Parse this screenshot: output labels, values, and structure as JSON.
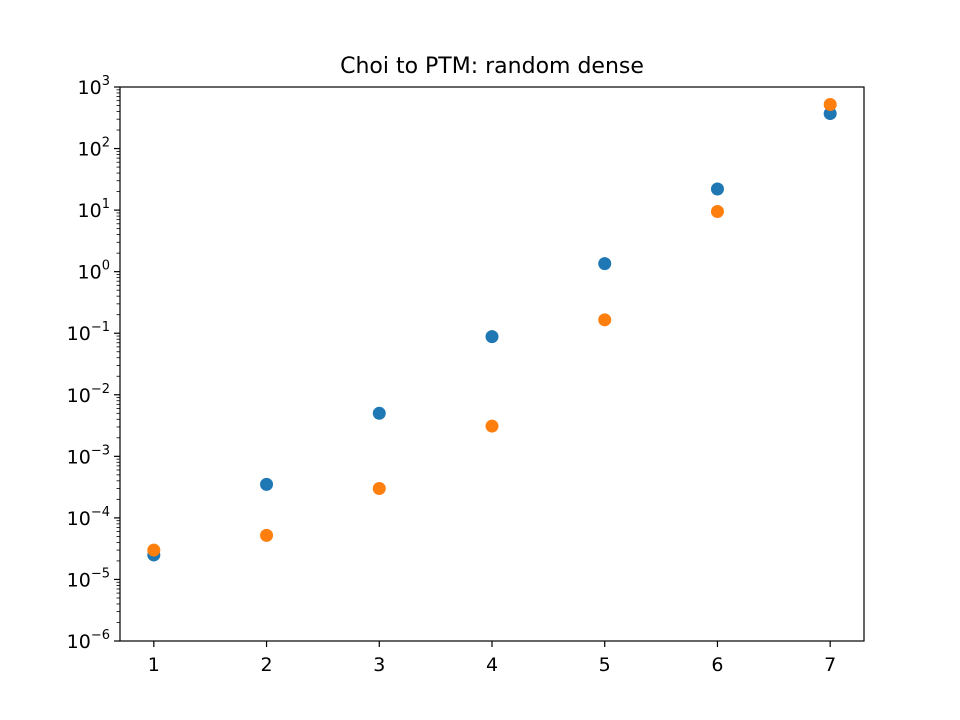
{
  "chart_data": {
    "type": "scatter",
    "title": "Choi to PTM: random dense",
    "xlabel": "",
    "ylabel": "",
    "yscale": "log",
    "x_ticks": [
      "1",
      "2",
      "3",
      "4",
      "5",
      "6",
      "7"
    ],
    "y_tick_exponents": [
      "-6",
      "-5",
      "-4",
      "-3",
      "-2",
      "-1",
      "0",
      "1",
      "2",
      "3"
    ],
    "y_tick_base": "10",
    "xlim": [
      0.7,
      7.3
    ],
    "ylim": [
      1e-06,
      1000
    ],
    "grid": false,
    "series": [
      {
        "color": "#1f77b4",
        "x": [
          1,
          2,
          3,
          4,
          5,
          6,
          7
        ],
        "y": [
          2.5e-05,
          0.00035,
          0.005,
          0.088,
          1.35,
          22,
          370
        ]
      },
      {
        "color": "#ff7f0e",
        "x": [
          1,
          2,
          3,
          4,
          5,
          6,
          7
        ],
        "y": [
          3e-05,
          5.2e-05,
          0.0003,
          0.0031,
          0.165,
          9.5,
          520
        ]
      }
    ]
  }
}
